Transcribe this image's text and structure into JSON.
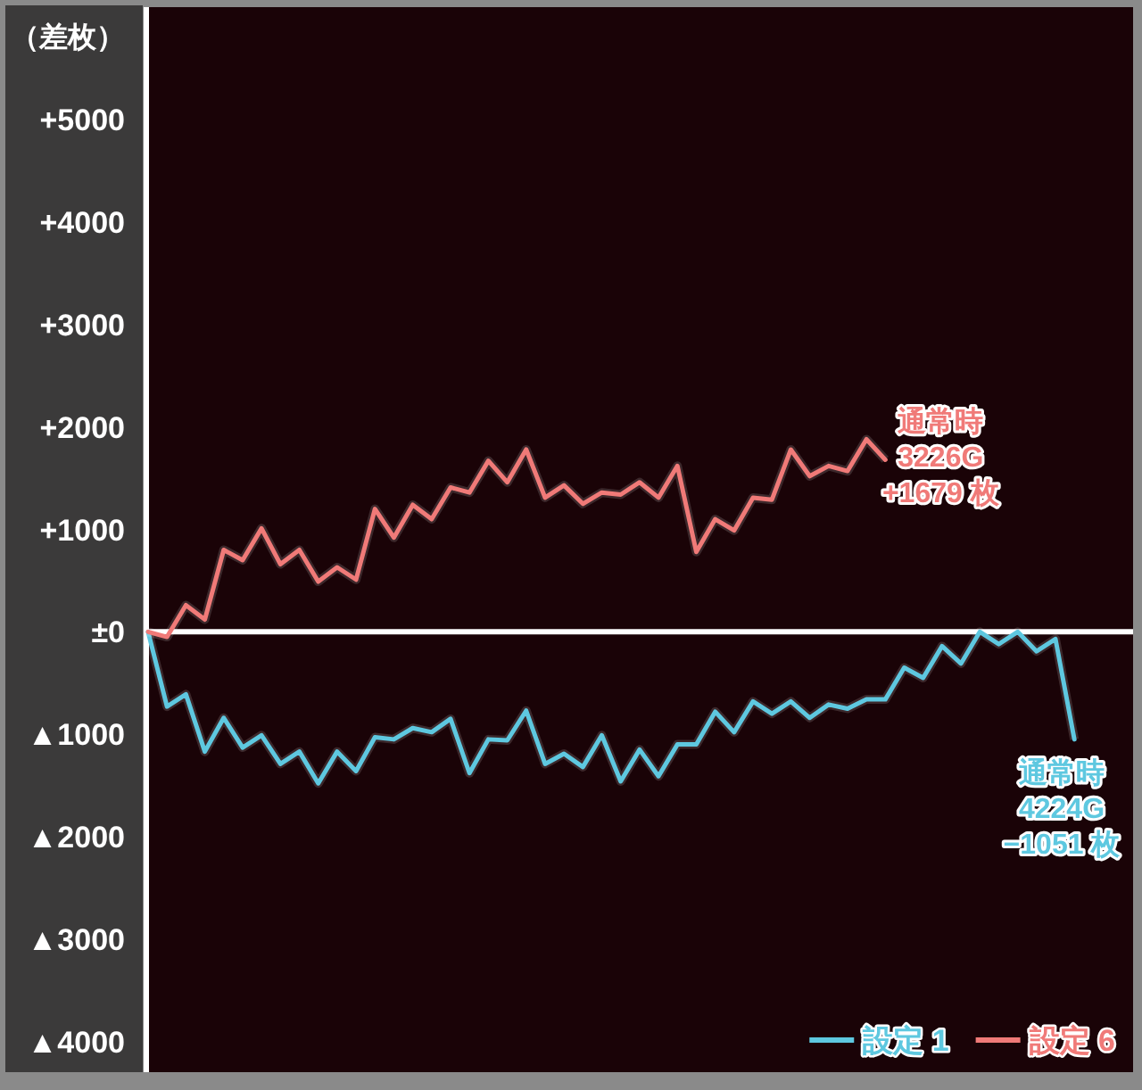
{
  "chart_data": {
    "type": "line",
    "ylabel": "（差枚）",
    "categories": [
      null,
      null,
      null,
      null,
      null,
      null,
      null,
      null,
      null,
      null,
      null,
      null,
      null,
      null,
      null,
      null,
      null,
      null,
      null,
      null,
      null,
      null,
      null,
      null,
      null,
      null,
      null,
      null,
      null,
      null,
      null,
      null,
      null,
      null,
      null,
      null,
      null,
      null,
      null,
      null,
      null,
      null,
      null,
      null,
      null,
      null,
      null,
      null,
      null,
      null
    ],
    "series": [
      {
        "name": "設定 1",
        "color": "#5ec8e0",
        "values": [
          0,
          -730,
          -610,
          -1170,
          -840,
          -1130,
          -1010,
          -1290,
          -1170,
          -1480,
          -1170,
          -1360,
          -1030,
          -1050,
          -940,
          -980,
          -850,
          -1380,
          -1050,
          -1060,
          -770,
          -1290,
          -1190,
          -1320,
          -1010,
          -1460,
          -1150,
          -1410,
          -1100,
          -1100,
          -780,
          -980,
          -680,
          -800,
          -680,
          -840,
          -710,
          -750,
          -660,
          -660,
          -350,
          -450,
          -140,
          -310,
          0,
          -120,
          0,
          -190,
          -70,
          -1050
        ]
      },
      {
        "name": "設定 6",
        "color": "#f07a78",
        "values": [
          0,
          -50,
          260,
          120,
          800,
          700,
          1010,
          660,
          800,
          490,
          630,
          510,
          1200,
          920,
          1240,
          1100,
          1410,
          1360,
          1670,
          1460,
          1780,
          1310,
          1430,
          1250,
          1360,
          1340,
          1460,
          1310,
          1620,
          780,
          1100,
          990,
          1310,
          1290,
          1780,
          1520,
          1620,
          1570,
          1880,
          1680,
          null,
          null,
          null,
          null,
          null,
          null,
          null,
          null,
          null,
          null
        ]
      }
    ],
    "ylim": [
      -4300,
      6100
    ],
    "yticks": [
      {
        "value": 5000,
        "label": "+5000"
      },
      {
        "value": 4000,
        "label": "+4000"
      },
      {
        "value": 3000,
        "label": "+3000"
      },
      {
        "value": 2000,
        "label": "+2000"
      },
      {
        "value": 1000,
        "label": "+1000"
      },
      {
        "value": 0,
        "label": "±0"
      },
      {
        "value": -1000,
        "label": "▲1000"
      },
      {
        "value": -2000,
        "label": "▲2000"
      },
      {
        "value": -3000,
        "label": "▲3000"
      },
      {
        "value": -4000,
        "label": "▲4000"
      }
    ],
    "ref_lines": [
      {
        "axis": "y",
        "value": 0,
        "color": "#ffffff"
      }
    ],
    "annotations": [
      "通常時\n3226G\n+1679 枚",
      "通常時\n4224G\n−1051 枚"
    ],
    "legend": "bottom right",
    "grid": false,
    "tick_labels": "y"
  }
}
